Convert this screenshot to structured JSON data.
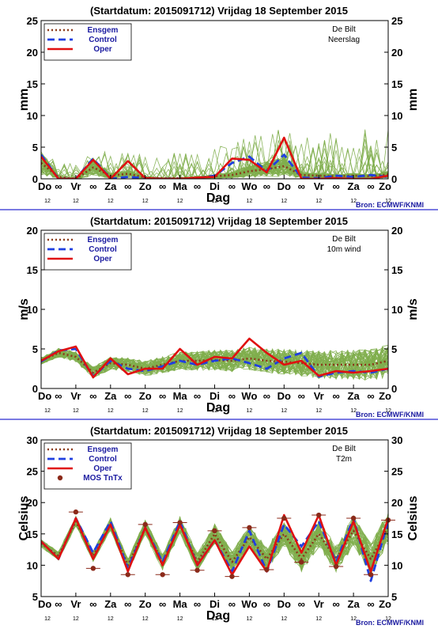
{
  "colors": {
    "members": "#7fae4d",
    "ensgem": "#8b3a1a",
    "control": "#1f3fe0",
    "oper": "#e01010",
    "mos": "#8b2a1a",
    "separator": "#2a2ad0",
    "frame": "#000000"
  },
  "days": [
    "Do",
    "Vr",
    "Za",
    "Zo",
    "Ma",
    "Di",
    "Wo",
    "Do",
    "Vr",
    "Za",
    "Zo"
  ],
  "sub_tick": "12",
  "half_day_glyph": "∞",
  "x_label": "Dag",
  "source": "Bron: ECMWF/KNMI",
  "chart_data": [
    {
      "type": "line",
      "title": "(Startdatum: 2015091712)   Vrijdag   18 September 2015",
      "station": "De Bilt",
      "variable": "Neerslag",
      "ylabel": "mm",
      "ylim": [
        0,
        25
      ],
      "yticks": [
        0,
        5,
        10,
        15,
        20,
        25
      ],
      "show_source": true,
      "legend": [
        "Ensgem",
        "Control",
        "Oper"
      ],
      "x": [
        0,
        0.5,
        1,
        1.5,
        2,
        2.5,
        3,
        3.5,
        4,
        4.5,
        5,
        5.5,
        6,
        6.5,
        7,
        7.5,
        8,
        8.5,
        9,
        9.5,
        10
      ],
      "series": [
        {
          "name": "Ensgem",
          "values": [
            2.5,
            0.3,
            0.0,
            1.8,
            0.5,
            0.8,
            0.2,
            0.1,
            0.1,
            0.2,
            0.4,
            0.6,
            1.2,
            1.5,
            2.0,
            0.6,
            0.5,
            0.4,
            0.5,
            0.4,
            0.7
          ]
        },
        {
          "name": "Control",
          "values": [
            3.8,
            0.0,
            0.0,
            3.2,
            0.0,
            0.3,
            0.1,
            0.0,
            0.0,
            0.1,
            0.5,
            2.5,
            3.5,
            1.2,
            3.8,
            0.2,
            0.1,
            0.5,
            0.3,
            0.6,
            0.3
          ]
        },
        {
          "name": "Oper",
          "values": [
            3.5,
            0.0,
            0.0,
            3.0,
            0.0,
            2.8,
            0.1,
            0.0,
            0.0,
            0.2,
            0.3,
            3.2,
            3.0,
            1.0,
            6.5,
            0.0,
            0.0,
            0.1,
            0.0,
            0.0,
            0.5
          ]
        }
      ]
    },
    {
      "type": "line",
      "title": "(Startdatum: 2015091712)   Vrijdag   18 September 2015",
      "station": "De Bilt",
      "variable": "10m wind",
      "ylabel": "m/s",
      "ylim": [
        0,
        20
      ],
      "yticks": [
        0,
        5,
        10,
        15,
        20
      ],
      "show_source": true,
      "legend": [
        "Ensgem",
        "Control",
        "Oper"
      ],
      "x": [
        0,
        0.5,
        1,
        1.5,
        2,
        2.5,
        3,
        3.5,
        4,
        4.5,
        5,
        5.5,
        6,
        6.5,
        7,
        7.5,
        8,
        8.5,
        9,
        9.5,
        10
      ],
      "series": [
        {
          "name": "Ensgem",
          "values": [
            3.5,
            4.5,
            4.0,
            2.0,
            3.2,
            3.0,
            2.5,
            3.0,
            3.5,
            3.5,
            3.6,
            3.5,
            3.8,
            3.5,
            3.4,
            3.2,
            3.0,
            3.0,
            3.0,
            3.0,
            3.5
          ]
        },
        {
          "name": "Control",
          "values": [
            3.4,
            4.8,
            5.0,
            1.5,
            3.5,
            2.5,
            2.2,
            2.8,
            3.5,
            3.0,
            3.5,
            3.8,
            3.2,
            2.5,
            3.8,
            4.5,
            1.5,
            2.0,
            2.2,
            2.0,
            2.5
          ]
        },
        {
          "name": "Oper",
          "values": [
            3.5,
            4.7,
            5.3,
            1.4,
            3.8,
            1.8,
            2.5,
            2.5,
            5.0,
            3.0,
            4.0,
            3.8,
            6.3,
            4.5,
            3.0,
            3.5,
            1.6,
            2.2,
            2.0,
            2.2,
            2.5
          ]
        }
      ]
    },
    {
      "type": "line",
      "title": "(Startdatum: 2015091712)   Vrijdag   18 September 2015",
      "station": "De Bilt",
      "variable": "T2m",
      "ylabel": "Celsius",
      "ylim": [
        5,
        30
      ],
      "yticks": [
        5,
        10,
        15,
        20,
        25,
        30
      ],
      "show_source": true,
      "legend": [
        "Ensgem",
        "Control",
        "Oper",
        "MOS TnTx"
      ],
      "x": [
        0,
        0.5,
        1,
        1.5,
        2,
        2.5,
        3,
        3.5,
        4,
        4.5,
        5,
        5.5,
        6,
        6.5,
        7,
        7.5,
        8,
        8.5,
        9,
        9.5,
        10
      ],
      "series": [
        {
          "name": "Ensgem",
          "values": [
            13.5,
            11.5,
            17.0,
            11.5,
            16.5,
            10.0,
            16.0,
            10.5,
            16.5,
            10.5,
            15.0,
            10.5,
            14.5,
            11.0,
            15.0,
            11.0,
            15.0,
            11.0,
            15.5,
            11.0,
            16.0
          ]
        },
        {
          "name": "Control",
          "values": [
            13.8,
            11.0,
            17.5,
            12.0,
            17.0,
            9.5,
            16.0,
            10.5,
            17.0,
            10.0,
            14.0,
            9.0,
            15.5,
            9.0,
            16.5,
            13.0,
            17.0,
            10.5,
            17.5,
            7.5,
            17.0
          ]
        },
        {
          "name": "Oper",
          "values": [
            13.8,
            11.0,
            17.5,
            11.0,
            16.5,
            9.0,
            16.0,
            10.0,
            16.5,
            10.0,
            14.0,
            8.5,
            13.0,
            9.0,
            18.0,
            12.0,
            18.0,
            10.0,
            17.0,
            9.0,
            17.5
          ]
        }
      ],
      "mos": {
        "name": "MOS TnTx",
        "x": [
          1,
          1.5,
          2.5,
          3,
          3.5,
          4,
          4.5,
          5,
          5.5,
          6,
          6.5,
          7,
          7.5,
          8,
          8.5,
          9,
          9.5,
          10
        ],
        "values": [
          18.5,
          9.5,
          8.5,
          16.5,
          8.5,
          16.8,
          9.2,
          15.5,
          8.2,
          16.0,
          9.3,
          17.5,
          10.5,
          18.0,
          9.8,
          17.5,
          8.5,
          17.2
        ]
      }
    }
  ]
}
